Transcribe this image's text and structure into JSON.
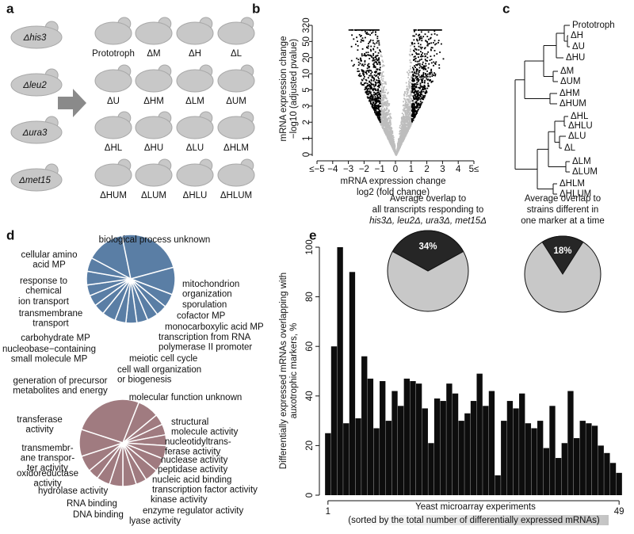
{
  "panel_labels": [
    "a",
    "b",
    "c",
    "d",
    "e"
  ],
  "panel_a": {
    "strains": [
      "Δhis3",
      "Δleu2",
      "Δura3",
      "Δmet15"
    ],
    "combinations": [
      "Prototroph",
      "ΔM",
      "ΔH",
      "ΔL",
      "ΔU",
      "ΔHM",
      "ΔLM",
      "ΔUM",
      "ΔHL",
      "ΔHU",
      "ΔLU",
      "ΔHLM",
      "ΔHUM",
      "ΔLUM",
      "ΔHLU",
      "ΔHLUM"
    ]
  },
  "chart_data": [
    {
      "type": "volcano",
      "xlabel": [
        "mRNA expression change",
        "log2 (fold change)"
      ],
      "ylabel": [
        "mRNA expression change",
        "−log10 (adjusted pvalue)"
      ],
      "xlim": [
        -5,
        5
      ],
      "xticks": [
        {
          "value": -5,
          "label": "≤−5"
        },
        {
          "value": -4,
          "label": "−4"
        },
        {
          "value": -3,
          "label": "−3"
        },
        {
          "value": -2,
          "label": "−2"
        },
        {
          "value": -1,
          "label": "−1"
        },
        0,
        1,
        2,
        3,
        4,
        {
          "value": 5,
          "label": "5≤"
        }
      ],
      "yticks": [
        0,
        1,
        2,
        3,
        5,
        10,
        20,
        50,
        320
      ],
      "colors": [
        "#000000",
        "#bdbdbd"
      ]
    },
    {
      "type": "dendrogram",
      "leaves": [
        "Prototroph",
        "ΔH",
        "ΔU",
        "ΔHU",
        "ΔM",
        "ΔUM",
        "ΔHM",
        "ΔHUM",
        "ΔHL",
        "ΔHLU",
        "ΔLU",
        "ΔL",
        "ΔLM",
        "ΔLUM",
        "ΔHLM",
        "ΔHLUM"
      ]
    },
    {
      "type": "pie",
      "color": "#5a7ea5",
      "labels": [
        [
          "cellular amino",
          "acid MP"
        ],
        [
          "biological process unknown"
        ],
        [
          "mitochondrion",
          "organization"
        ],
        [
          "sporulation"
        ],
        [
          "cofactor MP"
        ],
        [
          "monocarboxylic acid MP"
        ],
        [
          "transcription from RNA",
          "polymerase II promoter"
        ],
        [
          "meiotic cell cycle"
        ],
        [
          "cell wall organization",
          "or biogenesis"
        ],
        [
          "generation of precursor",
          "metabolites and energy"
        ],
        [
          "nucleobase−containing",
          "small molecule MP"
        ],
        [
          "carbohydrate MP"
        ],
        [
          "transmembrane",
          "transport"
        ],
        [
          "ion transport"
        ],
        [
          "response to",
          "chemical"
        ]
      ],
      "values": [
        14,
        24,
        10,
        5,
        4,
        4,
        4,
        4,
        4,
        5,
        4,
        4,
        4,
        5,
        5
      ]
    },
    {
      "type": "pie",
      "color": "#a07b80",
      "labels": [
        [
          "molecular function unknown"
        ],
        [
          "structural",
          "molecule activity"
        ],
        [
          "nucleotidyltrans-",
          "ferase activity"
        ],
        [
          "nuclease activity"
        ],
        [
          "peptidase activity"
        ],
        [
          "nucleic acid binding",
          "transcription factor activity"
        ],
        [
          "kinase activity"
        ],
        [
          "enzyme regulator activity"
        ],
        [
          "lyase activity"
        ],
        [
          "DNA binding"
        ],
        [
          "RNA binding"
        ],
        [
          "hydrolase activity"
        ],
        [
          "oxidoreductase",
          "activity"
        ],
        [
          "transmembr-",
          "ane transpor-",
          "ter activity"
        ],
        [
          "transferase",
          "activity"
        ]
      ],
      "values": [
        26,
        8,
        4,
        4,
        4,
        5,
        5,
        5,
        4,
        5,
        5,
        5,
        4,
        6,
        10
      ]
    },
    {
      "type": "bar",
      "color": "#0d0d0d",
      "ylabel": [
        "Differentially expressed mRNAs overlapping with",
        "auxotrophic markers, %"
      ],
      "xlabel": "Yeast microarray experiments",
      "xlabel_note": "(sorted by the total number of differentially expressed mRNAs)",
      "x": [
        1,
        2,
        3,
        4,
        5,
        6,
        7,
        8,
        9,
        10,
        11,
        12,
        13,
        14,
        15,
        16,
        17,
        18,
        19,
        20,
        21,
        22,
        23,
        24,
        25,
        26,
        27,
        28,
        29,
        30,
        31,
        32,
        33,
        34,
        35,
        36,
        37,
        38,
        39,
        40,
        41,
        42,
        43,
        44,
        45,
        46,
        47,
        48,
        49
      ],
      "values": [
        25,
        60,
        100,
        29,
        90,
        31,
        56,
        47,
        27,
        46,
        30,
        42,
        36,
        47,
        46,
        45,
        35,
        21,
        39,
        38,
        45,
        41,
        30,
        33,
        38,
        49,
        36,
        42,
        8,
        30,
        38,
        35,
        41,
        29,
        27,
        30,
        19,
        36,
        15,
        21,
        42,
        23,
        30,
        29,
        28,
        20,
        17,
        13,
        9
      ],
      "xlim": [
        0.5,
        49.5
      ],
      "xticks": [
        1,
        49
      ],
      "ylim": [
        0,
        100
      ],
      "yticks": [
        0,
        20,
        40,
        60,
        80,
        100
      ]
    },
    {
      "type": "pie",
      "title": [
        "Average overlap to",
        "all transcripts responding to",
        "his3Δ, leu2Δ, ura3Δ, met15Δ"
      ],
      "values": [
        34
      ],
      "value_labels": [
        "34%"
      ],
      "color": "#262626",
      "background_color": "#c8c8c8"
    },
    {
      "type": "pie",
      "title": [
        "Average overlap to",
        "strains different in",
        "one marker at a time"
      ],
      "values": [
        18
      ],
      "value_labels": [
        "18%"
      ],
      "color": "#262626",
      "background_color": "#c8c8c8"
    }
  ]
}
